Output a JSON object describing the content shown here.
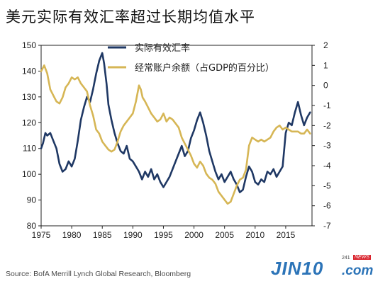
{
  "title": "美元实际有效汇率超过长期均值水平",
  "source": "Source: BofA Merrill Lynch Global Research, Bloomberg",
  "logo": {
    "main": "JIN10",
    "com": ".com",
    "num": "241",
    "news": "NEWS"
  },
  "colors": {
    "reer": "#1f3864",
    "ca": "#d6b655"
  },
  "chart_data": {
    "type": "line",
    "title": "美元实际有效汇率超过长期均值水平",
    "x_ticks": [
      1975,
      1980,
      1985,
      1990,
      1995,
      2000,
      2005,
      2010,
      2015
    ],
    "xlim": [
      1975,
      2019.3
    ],
    "y_left": {
      "ticks": [
        80,
        90,
        100,
        110,
        120,
        130,
        140,
        150
      ],
      "lim": [
        80,
        150
      ]
    },
    "y_right": {
      "ticks": [
        2,
        1,
        0,
        -1,
        -2,
        -3,
        -4,
        -5,
        -6,
        -7
      ],
      "lim": [
        -7,
        2
      ]
    },
    "legend_position": "top-center",
    "series": [
      {
        "name": "实际有效汇率",
        "axis": "left",
        "color": "#1f3864",
        "x": [
          1975.0,
          1975.3,
          1975.7,
          1976.0,
          1976.5,
          1977.0,
          1977.5,
          1978.0,
          1978.5,
          1979.0,
          1979.5,
          1980.0,
          1980.5,
          1981.0,
          1981.5,
          1982.0,
          1982.5,
          1983.0,
          1983.5,
          1984.0,
          1984.5,
          1985.0,
          1985.3,
          1985.7,
          1986.0,
          1986.5,
          1987.0,
          1987.5,
          1988.0,
          1988.5,
          1989.0,
          1989.5,
          1990.0,
          1990.5,
          1991.0,
          1991.5,
          1992.0,
          1992.5,
          1993.0,
          1993.5,
          1994.0,
          1994.5,
          1995.0,
          1995.5,
          1996.0,
          1996.5,
          1997.0,
          1997.5,
          1998.0,
          1998.5,
          1999.0,
          1999.5,
          2000.0,
          2000.5,
          2001.0,
          2001.5,
          2002.0,
          2002.5,
          2003.0,
          2003.5,
          2004.0,
          2004.5,
          2005.0,
          2005.5,
          2006.0,
          2006.5,
          2007.0,
          2007.5,
          2008.0,
          2008.5,
          2009.0,
          2009.5,
          2010.0,
          2010.5,
          2011.0,
          2011.5,
          2012.0,
          2012.5,
          2013.0,
          2013.5,
          2014.0,
          2014.5,
          2015.0,
          2015.5,
          2016.0,
          2016.5,
          2017.0,
          2017.5,
          2018.0,
          2018.5,
          2019.0
        ],
        "values": [
          110,
          112,
          116,
          115,
          116,
          113,
          110,
          104,
          101,
          102,
          105,
          103,
          106,
          113,
          121,
          126,
          130,
          128,
          133,
          139,
          144,
          147,
          143,
          135,
          127,
          121,
          116,
          112,
          109,
          108,
          111,
          106,
          105,
          103,
          101,
          98,
          101,
          99,
          102,
          98,
          100,
          97,
          95,
          97,
          99,
          102,
          105,
          108,
          111,
          107,
          109,
          114,
          117,
          121,
          124,
          120,
          115,
          109,
          105,
          101,
          98,
          100,
          97,
          99,
          101,
          98,
          96,
          93,
          94,
          99,
          103,
          101,
          97,
          96,
          98,
          97,
          101,
          100,
          102,
          99,
          101,
          103,
          116,
          120,
          119,
          124,
          128,
          123,
          119,
          122,
          124
        ]
      },
      {
        "name": "经常账户余额（占GDP的百分比）",
        "axis": "right",
        "color": "#d6b655",
        "x": [
          1975.0,
          1975.5,
          1976.0,
          1976.5,
          1977.0,
          1977.5,
          1978.0,
          1978.5,
          1979.0,
          1979.5,
          1980.0,
          1980.5,
          1981.0,
          1981.5,
          1982.0,
          1982.5,
          1983.0,
          1983.5,
          1984.0,
          1984.5,
          1985.0,
          1985.5,
          1986.0,
          1986.5,
          1987.0,
          1987.5,
          1988.0,
          1988.5,
          1989.0,
          1989.5,
          1990.0,
          1990.5,
          1991.0,
          1991.3,
          1991.6,
          1992.0,
          1992.5,
          1993.0,
          1993.5,
          1994.0,
          1994.5,
          1995.0,
          1995.5,
          1996.0,
          1996.5,
          1997.0,
          1997.5,
          1998.0,
          1998.5,
          1999.0,
          1999.5,
          2000.0,
          2000.5,
          2001.0,
          2001.5,
          2002.0,
          2002.5,
          2003.0,
          2003.5,
          2004.0,
          2004.5,
          2005.0,
          2005.5,
          2006.0,
          2006.5,
          2007.0,
          2007.5,
          2008.0,
          2008.5,
          2009.0,
          2009.5,
          2010.0,
          2010.5,
          2011.0,
          2011.5,
          2012.0,
          2012.5,
          2013.0,
          2013.5,
          2014.0,
          2014.5,
          2015.0,
          2015.5,
          2016.0,
          2016.5,
          2017.0,
          2017.5,
          2018.0,
          2018.5,
          2019.0
        ],
        "values": [
          0.7,
          1.0,
          0.6,
          -0.2,
          -0.5,
          -0.8,
          -0.9,
          -0.6,
          -0.1,
          0.1,
          0.4,
          0.3,
          0.4,
          0.1,
          -0.1,
          -0.3,
          -1.0,
          -1.5,
          -2.2,
          -2.4,
          -2.8,
          -3.0,
          -3.2,
          -3.3,
          -3.2,
          -2.8,
          -2.3,
          -2.0,
          -1.8,
          -1.6,
          -1.4,
          -0.8,
          0.0,
          -0.2,
          -0.6,
          -0.8,
          -1.1,
          -1.4,
          -1.6,
          -1.8,
          -1.7,
          -1.4,
          -1.8,
          -1.6,
          -1.7,
          -1.9,
          -2.1,
          -2.6,
          -2.9,
          -3.2,
          -3.5,
          -3.9,
          -4.1,
          -3.8,
          -4.0,
          -4.4,
          -4.6,
          -4.7,
          -4.9,
          -5.3,
          -5.5,
          -5.7,
          -5.9,
          -5.8,
          -5.4,
          -5.0,
          -4.7,
          -4.6,
          -4.2,
          -3.0,
          -2.6,
          -2.7,
          -2.8,
          -2.7,
          -2.8,
          -2.7,
          -2.6,
          -2.3,
          -2.1,
          -2.0,
          -2.2,
          -2.1,
          -2.2,
          -2.3,
          -2.3,
          -2.3,
          -2.4,
          -2.4,
          -2.2,
          -2.4
        ]
      }
    ]
  }
}
